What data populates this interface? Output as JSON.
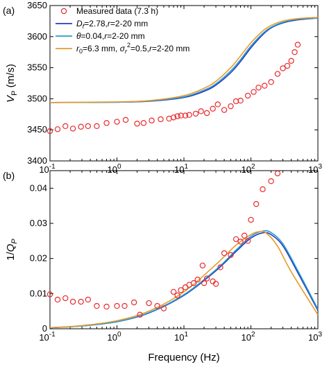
{
  "chart_data": [
    {
      "type": "scatter+line",
      "panel_label": "(a)",
      "ylabel": "V_P (m/s)",
      "xlabel": "",
      "xscale": "log",
      "xlim": [
        0.1,
        1000
      ],
      "ylim": [
        3400,
        3650
      ],
      "yticks": [
        3400,
        3450,
        3500,
        3550,
        3600,
        3650
      ],
      "xticks": [
        0.1,
        1,
        10,
        100,
        1000
      ],
      "legend_position": "top-left",
      "series": [
        {
          "name": "Measured data  (7.3 h)",
          "kind": "markers",
          "color": "#e8292b",
          "points": [
            [
              0.1,
              3448
            ],
            [
              0.13,
              3451
            ],
            [
              0.17,
              3456
            ],
            [
              0.22,
              3452
            ],
            [
              0.29,
              3455
            ],
            [
              0.37,
              3456
            ],
            [
              0.5,
              3456
            ],
            [
              0.7,
              3461
            ],
            [
              1.0,
              3463
            ],
            [
              1.35,
              3466
            ],
            [
              2.0,
              3460
            ],
            [
              2.5,
              3461
            ],
            [
              3.3,
              3465
            ],
            [
              4.5,
              3467
            ],
            [
              6.0,
              3468
            ],
            [
              7.0,
              3470
            ],
            [
              8.0,
              3472
            ],
            [
              9.0,
              3473
            ],
            [
              10.5,
              3473
            ],
            [
              12.0,
              3474
            ],
            [
              15.0,
              3476
            ],
            [
              18.0,
              3480
            ],
            [
              22.0,
              3477
            ],
            [
              27.0,
              3484
            ],
            [
              32.0,
              3491
            ],
            [
              40.0,
              3482
            ],
            [
              50.0,
              3488
            ],
            [
              60.0,
              3496
            ],
            [
              70.0,
              3497
            ],
            [
              90.0,
              3505
            ],
            [
              110.0,
              3511
            ],
            [
              130.0,
              3518
            ],
            [
              160.0,
              3521
            ],
            [
              200.0,
              3527
            ],
            [
              250.0,
              3540
            ],
            [
              300.0,
              3549
            ],
            [
              350.0,
              3553
            ],
            [
              400.0,
              3561
            ],
            [
              450.0,
              3575
            ],
            [
              500.0,
              3587
            ]
          ]
        },
        {
          "name": "D_f=2.78, r=2-20 mm",
          "kind": "line",
          "color": "#1f3fbf",
          "points": [
            [
              0.1,
              3494
            ],
            [
              1,
              3494.5
            ],
            [
              3,
              3496
            ],
            [
              10,
              3502
            ],
            [
              20,
              3512
            ],
            [
              30,
              3522
            ],
            [
              50,
              3542
            ],
            [
              70,
              3560
            ],
            [
              100,
              3582
            ],
            [
              150,
              3603
            ],
            [
              200,
              3614
            ],
            [
              300,
              3622
            ],
            [
              500,
              3627
            ],
            [
              1000,
              3630
            ]
          ]
        },
        {
          "name": "θ=0.04, r=2-20 mm",
          "kind": "line",
          "color": "#2a9ad1",
          "points": [
            [
              0.1,
              3494
            ],
            [
              1,
              3494.5
            ],
            [
              3,
              3496.5
            ],
            [
              10,
              3503
            ],
            [
              20,
              3514
            ],
            [
              30,
              3524
            ],
            [
              50,
              3545
            ],
            [
              70,
              3563
            ],
            [
              100,
              3585
            ],
            [
              150,
              3605
            ],
            [
              200,
              3615
            ],
            [
              300,
              3623
            ],
            [
              500,
              3628
            ],
            [
              1000,
              3630
            ]
          ]
        },
        {
          "name": "r_0=6.3 mm, σ_r^2=0.5, r=2-20 mm",
          "kind": "line",
          "color": "#e89a2a",
          "points": [
            [
              0.1,
              3494
            ],
            [
              1,
              3495
            ],
            [
              3,
              3497
            ],
            [
              10,
              3505
            ],
            [
              20,
              3517
            ],
            [
              30,
              3528
            ],
            [
              50,
              3550
            ],
            [
              70,
              3569
            ],
            [
              100,
              3590
            ],
            [
              150,
              3609
            ],
            [
              200,
              3618
            ],
            [
              300,
              3625
            ],
            [
              500,
              3629
            ],
            [
              1000,
              3631
            ]
          ]
        }
      ]
    },
    {
      "type": "scatter+line",
      "panel_label": "(b)",
      "ylabel": "1/Q_P",
      "xlabel": "Frequency (Hz)",
      "xscale": "log",
      "xlim": [
        0.1,
        1000
      ],
      "ylim": [
        0,
        0.045
      ],
      "yticks": [
        0,
        0.01,
        0.02,
        0.03,
        0.04
      ],
      "xticks": [
        0.1,
        1,
        10,
        100,
        1000
      ],
      "series": [
        {
          "name": "Measured data  (7.3 h)",
          "kind": "markers",
          "color": "#e8292b",
          "points": [
            [
              0.1,
              0.0098
            ],
            [
              0.13,
              0.0083
            ],
            [
              0.17,
              0.0087
            ],
            [
              0.22,
              0.0077
            ],
            [
              0.29,
              0.0077
            ],
            [
              0.37,
              0.0083
            ],
            [
              0.5,
              0.0065
            ],
            [
              0.7,
              0.0063
            ],
            [
              1.0,
              0.0065
            ],
            [
              1.3,
              0.0065
            ],
            [
              1.8,
              0.0075
            ],
            [
              2.2,
              0.004
            ],
            [
              3.0,
              0.0073
            ],
            [
              4.0,
              0.0065
            ],
            [
              5.0,
              0.0058
            ],
            [
              7.0,
              0.0105
            ],
            [
              8.0,
              0.0095
            ],
            [
              9.0,
              0.011
            ],
            [
              10.5,
              0.0118
            ],
            [
              12.0,
              0.0125
            ],
            [
              14.0,
              0.013
            ],
            [
              16.0,
              0.014
            ],
            [
              19.0,
              0.018
            ],
            [
              20.0,
              0.013
            ],
            [
              22.0,
              0.0143
            ],
            [
              27.0,
              0.0135
            ],
            [
              30.0,
              0.0128
            ],
            [
              35.0,
              0.0175
            ],
            [
              40.0,
              0.0215
            ],
            [
              50.0,
              0.021
            ],
            [
              60.0,
              0.0255
            ],
            [
              70.0,
              0.0248
            ],
            [
              80.0,
              0.0265
            ],
            [
              90.0,
              0.025
            ],
            [
              100.0,
              0.031
            ],
            [
              120.0,
              0.0355
            ],
            [
              150.0,
              0.0397
            ],
            [
              200.0,
              0.042
            ],
            [
              250.0,
              0.0442
            ]
          ]
        },
        {
          "name": "D_f=2.78, r=2-20 mm",
          "kind": "line",
          "color": "#1f3fbf",
          "points": [
            [
              0.1,
              0.0003
            ],
            [
              0.3,
              0.0008
            ],
            [
              1,
              0.002
            ],
            [
              3,
              0.0045
            ],
            [
              10,
              0.0095
            ],
            [
              30,
              0.0165
            ],
            [
              60,
              0.022
            ],
            [
              100,
              0.0258
            ],
            [
              150,
              0.0273
            ],
            [
              200,
              0.0268
            ],
            [
              300,
              0.0236
            ],
            [
              500,
              0.016
            ],
            [
              1000,
              0.0052
            ]
          ]
        },
        {
          "name": "θ=0.04, r=2-20 mm",
          "kind": "line",
          "color": "#2a9ad1",
          "points": [
            [
              0.1,
              0.0003
            ],
            [
              0.3,
              0.0008
            ],
            [
              1,
              0.002
            ],
            [
              3,
              0.0046
            ],
            [
              10,
              0.0097
            ],
            [
              30,
              0.0168
            ],
            [
              60,
              0.0224
            ],
            [
              100,
              0.0263
            ],
            [
              150,
              0.0278
            ],
            [
              200,
              0.0274
            ],
            [
              300,
              0.0242
            ],
            [
              500,
              0.0166
            ],
            [
              1000,
              0.0056
            ]
          ]
        },
        {
          "name": "r_0=6.3 mm, σ_r^2=0.5, r=2-20 mm",
          "kind": "line",
          "color": "#e89a2a",
          "points": [
            [
              0.1,
              0.0003
            ],
            [
              0.3,
              0.0009
            ],
            [
              1,
              0.0023
            ],
            [
              3,
              0.005
            ],
            [
              10,
              0.0105
            ],
            [
              30,
              0.0183
            ],
            [
              60,
              0.0238
            ],
            [
              100,
              0.0268
            ],
            [
              130,
              0.0276
            ],
            [
              170,
              0.0272
            ],
            [
              250,
              0.0235
            ],
            [
              400,
              0.0162
            ],
            [
              1000,
              0.004
            ]
          ]
        }
      ]
    }
  ]
}
